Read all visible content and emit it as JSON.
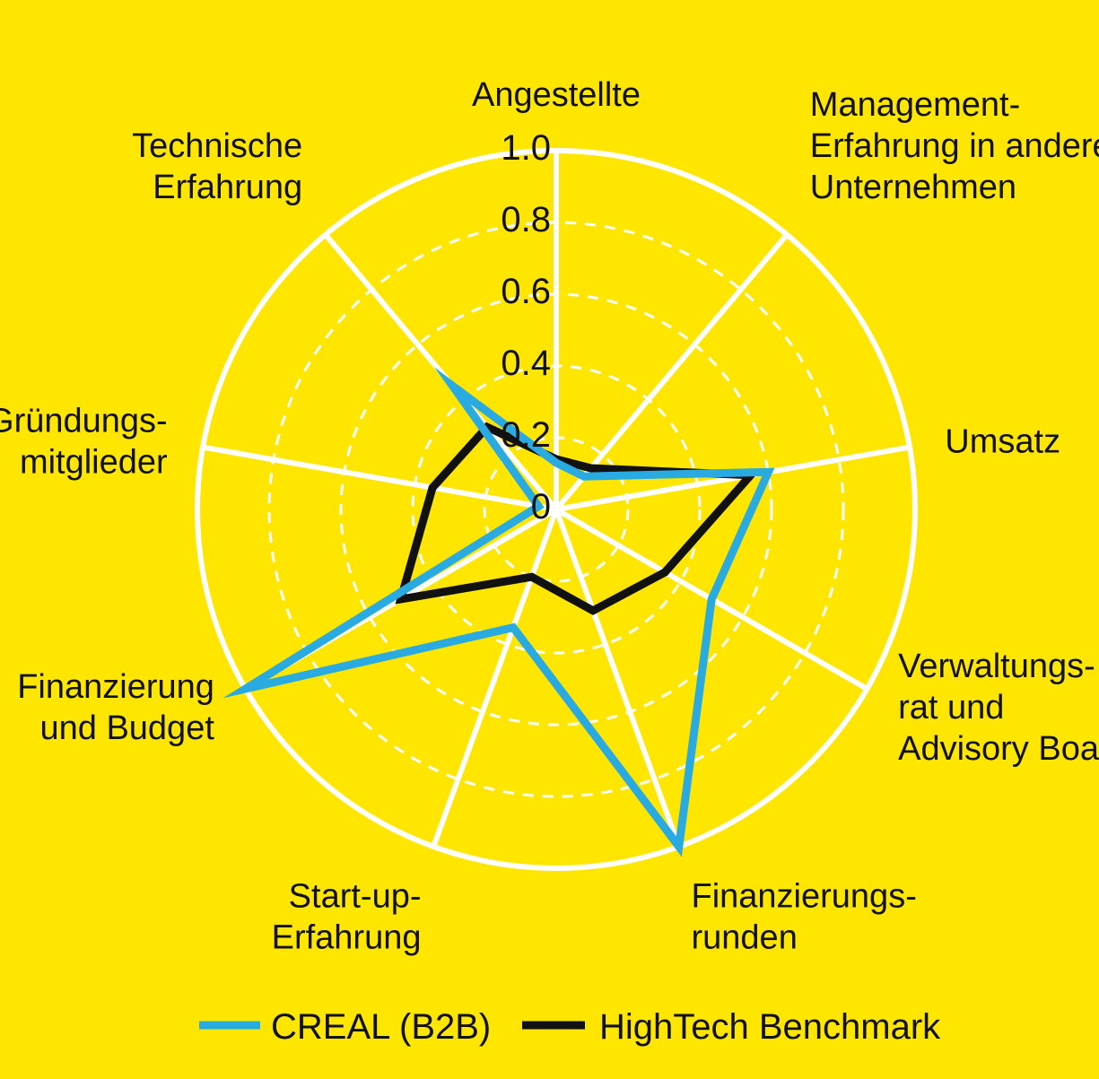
{
  "chart_data": {
    "type": "radar",
    "axes": [
      "Angestellte",
      "Management-Erfahrung in anderen Unternehmen",
      "Umsatz",
      "Verwaltungsrat und Advisory Board",
      "Finanzierungsrunden",
      "Start-up-Erfahrung",
      "Finanzierung und Budget",
      "Gründungsmitglieder",
      "Technische Erfahrung"
    ],
    "axis_label_lines": [
      [
        "Angestellte"
      ],
      [
        "Management-",
        "Erfahrung  in anderen",
        "Unternehmen"
      ],
      [
        "Umsatz"
      ],
      [
        "Verwaltungs-",
        "rat und",
        "Advisory Board"
      ],
      [
        "Finanzierungs-",
        "runden"
      ],
      [
        "Start-up-",
        "Erfahrung"
      ],
      [
        "Finanzierung",
        "und Budget"
      ],
      [
        "Gründungs-",
        "mitglieder"
      ],
      [
        "Technische",
        "Erfahrung"
      ]
    ],
    "tick_labels": [
      "0",
      "0.2",
      "0.4",
      "0.6",
      "0.8",
      "1.0"
    ],
    "rlim": [
      0,
      1
    ],
    "grid": true,
    "legend_position": "bottom",
    "series": [
      {
        "name": "CREAL (B2B)",
        "color": "#29ABE2",
        "values": [
          0.13,
          0.12,
          0.6,
          0.5,
          1.0,
          0.35,
          1.0,
          0.05,
          0.45
        ]
      },
      {
        "name": "HighTech Benchmark",
        "color": "#111111",
        "values": [
          0.14,
          0.15,
          0.55,
          0.35,
          0.3,
          0.2,
          0.5,
          0.35,
          0.3
        ]
      }
    ]
  },
  "colors": {
    "background": "#FFE600",
    "grid": "#FFFFFF",
    "text": "#111111"
  }
}
